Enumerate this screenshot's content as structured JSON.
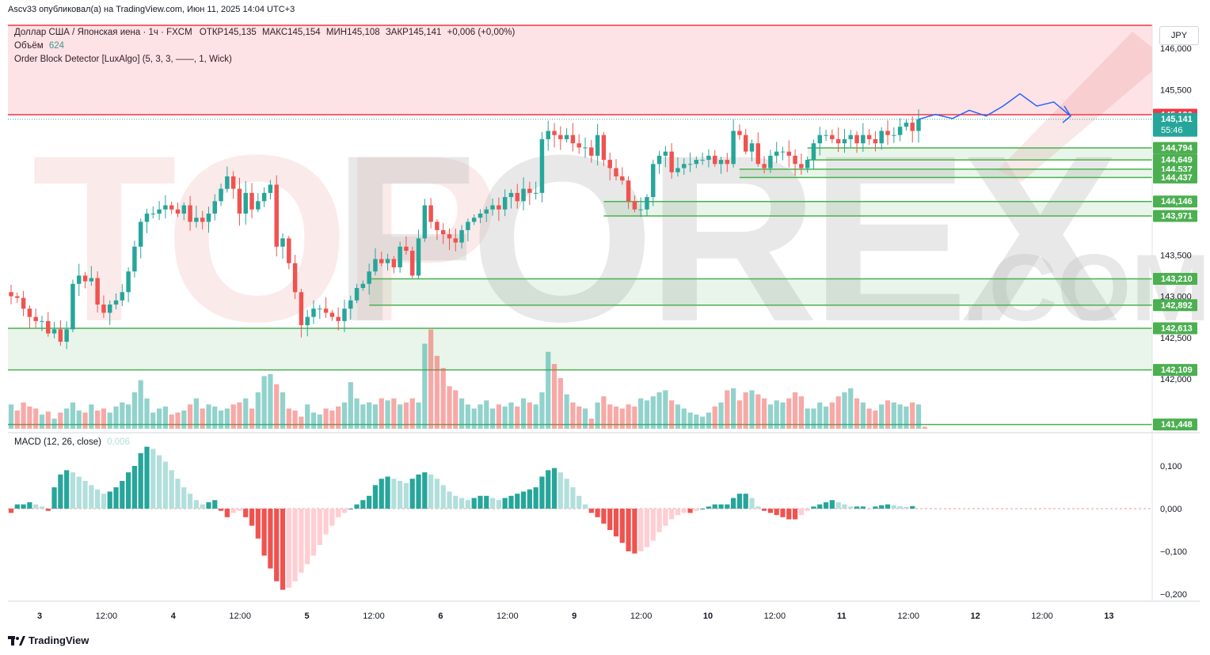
{
  "header": {
    "published": "Ascv33 опубликовал(а) на TradingView.com, Июн 11, 2025 14:04 UTC+3",
    "symbol_line": "Доллар США / Японская иена · 1ч · FXCM",
    "open_label": "ОТКР",
    "open": "145,135",
    "high_label": "МАКС",
    "high": "145,154",
    "low_label": "МИН",
    "low": "145,108",
    "close_label": "ЗАКР",
    "close": "145,141",
    "change": "+0,006 (+0,00%)",
    "volume_label": "Объём",
    "volume": "624",
    "indicator": "Order Block Detector [LuxAlgo] (5, 3, 3, ——, 1, Wick)"
  },
  "currency": "JPY",
  "macd_legend": {
    "label": "MACD (12, 26, close)",
    "value": "0,006"
  },
  "footer": {
    "brand": "TradingView"
  },
  "watermark": {
    "text": "TOPFOREX",
    "suffix": ".COM"
  },
  "colors": {
    "up": "#26a69a",
    "down": "#ef5350",
    "macd_up_strong": "#26a69a",
    "macd_up_weak": "#b2dfdb",
    "macd_down_strong": "#ef5350",
    "macd_down_weak": "#ffcdd2",
    "zone_green": "#4caf50",
    "zone_red": "#f23645",
    "forecast": "#2962ff"
  },
  "chart_data": {
    "type": "candlestick",
    "price_axis": {
      "min": 141.3,
      "max": 146.2,
      "ticks": [
        "146,000",
        "145,500",
        "143,500",
        "143,000",
        "142,500",
        "142,000"
      ],
      "tick_values": [
        146.0,
        145.5,
        143.5,
        143.0,
        142.5,
        142.0
      ]
    },
    "time_axis": {
      "labels": [
        "3",
        "12:00",
        "4",
        "12:00",
        "5",
        "12:00",
        "6",
        "12:00",
        "9",
        "12:00",
        "10",
        "12:00",
        "11",
        "12:00",
        "12",
        "12:00",
        "13"
      ],
      "bold": [
        true,
        false,
        true,
        false,
        true,
        false,
        true,
        false,
        true,
        false,
        true,
        false,
        true,
        false,
        true,
        false,
        true
      ]
    },
    "price_badges": [
      {
        "label": "145,196",
        "value": 145.196,
        "color": "#f23645"
      },
      {
        "label": "145,141",
        "value": 145.141,
        "color": "#26a69a",
        "countdown": "55:46"
      },
      {
        "label": "144,794",
        "value": 144.794,
        "color": "#4caf50"
      },
      {
        "label": "144,649",
        "value": 144.649,
        "color": "#4caf50"
      },
      {
        "label": "144,537",
        "value": 144.537,
        "color": "#4caf50"
      },
      {
        "label": "144,437",
        "value": 144.437,
        "color": "#4caf50"
      },
      {
        "label": "144,146",
        "value": 144.146,
        "color": "#4caf50"
      },
      {
        "label": "143,971",
        "value": 143.971,
        "color": "#4caf50"
      },
      {
        "label": "143,210",
        "value": 143.21,
        "color": "#4caf50"
      },
      {
        "label": "142,892",
        "value": 142.892,
        "color": "#4caf50"
      },
      {
        "label": "142,613",
        "value": 142.613,
        "color": "#4caf50"
      },
      {
        "label": "142,109",
        "value": 142.109,
        "color": "#4caf50"
      },
      {
        "label": "141,448",
        "value": 141.448,
        "color": "#4caf50"
      }
    ],
    "zones": [
      {
        "kind": "bearish",
        "top": 146.2,
        "bottom": 145.196,
        "start_index": 0
      },
      {
        "kind": "bullish",
        "top": 144.794,
        "bottom": 144.649,
        "start_index": 129
      },
      {
        "kind": "bullish",
        "top": 144.537,
        "bottom": 144.437,
        "start_index": 118
      },
      {
        "kind": "bullish",
        "top": 144.146,
        "bottom": 143.971,
        "start_index": 96
      },
      {
        "kind": "bullish",
        "top": 143.21,
        "bottom": 142.892,
        "start_index": 58
      },
      {
        "kind": "bullish",
        "top": 142.613,
        "bottom": 142.109,
        "start_index": 0
      },
      {
        "kind": "line",
        "top": 141.448,
        "bottom": 141.448,
        "start_index": 0
      }
    ],
    "closes": [
      143.0,
      142.98,
      142.85,
      142.75,
      142.7,
      142.7,
      142.55,
      142.6,
      142.45,
      142.6,
      143.15,
      143.25,
      143.18,
      143.22,
      142.9,
      142.8,
      142.9,
      142.95,
      143.05,
      143.3,
      143.6,
      143.9,
      144.0,
      144.0,
      144.05,
      144.1,
      144.05,
      144.0,
      144.1,
      143.9,
      143.95,
      143.9,
      144.0,
      144.15,
      144.3,
      144.45,
      144.3,
      144.0,
      144.25,
      144.05,
      144.15,
      144.25,
      144.35,
      143.6,
      143.7,
      143.4,
      143.05,
      142.65,
      142.75,
      142.85,
      142.85,
      142.8,
      142.75,
      142.7,
      142.85,
      142.95,
      143.1,
      143.15,
      143.3,
      143.45,
      143.4,
      143.45,
      143.35,
      143.6,
      143.55,
      143.25,
      143.7,
      144.1,
      143.9,
      143.8,
      143.75,
      143.7,
      143.65,
      143.8,
      143.9,
      143.95,
      144.0,
      144.05,
      144.1,
      144.05,
      144.2,
      144.25,
      144.15,
      144.3,
      144.25,
      144.25,
      144.9,
      145.0,
      144.95,
      144.9,
      144.95,
      144.85,
      144.8,
      144.8,
      144.7,
      144.95,
      144.65,
      144.55,
      144.45,
      144.4,
      144.15,
      144.05,
      144.05,
      144.2,
      144.6,
      144.7,
      144.75,
      144.5,
      144.55,
      144.6,
      144.6,
      144.65,
      144.65,
      144.7,
      144.6,
      144.65,
      144.6,
      145.0,
      144.95,
      144.75,
      144.85,
      144.6,
      144.55,
      144.7,
      144.75,
      144.75,
      144.7,
      144.6,
      144.55,
      144.65,
      144.85,
      144.95,
      144.95,
      144.9,
      144.85,
      144.9,
      144.95,
      144.85,
      144.95,
      144.9,
      144.85,
      145.0,
      144.95,
      144.95,
      145.05,
      145.1,
      145.0,
      145.141
    ],
    "volumes": [
      0.24,
      0.18,
      0.26,
      0.22,
      0.2,
      0.14,
      0.17,
      0.1,
      0.16,
      0.2,
      0.26,
      0.18,
      0.16,
      0.24,
      0.18,
      0.2,
      0.16,
      0.22,
      0.26,
      0.24,
      0.36,
      0.48,
      0.3,
      0.16,
      0.2,
      0.22,
      0.14,
      0.16,
      0.18,
      0.24,
      0.3,
      0.2,
      0.24,
      0.22,
      0.18,
      0.2,
      0.24,
      0.26,
      0.3,
      0.2,
      0.36,
      0.52,
      0.54,
      0.44,
      0.36,
      0.2,
      0.18,
      0.12,
      0.24,
      0.16,
      0.14,
      0.2,
      0.18,
      0.22,
      0.26,
      0.46,
      0.3,
      0.24,
      0.26,
      0.24,
      0.3,
      0.28,
      0.3,
      0.24,
      0.26,
      0.3,
      0.26,
      0.84,
      0.98,
      0.72,
      0.6,
      0.42,
      0.38,
      0.3,
      0.24,
      0.2,
      0.24,
      0.28,
      0.2,
      0.24,
      0.22,
      0.26,
      0.22,
      0.3,
      0.26,
      0.24,
      0.36,
      0.76,
      0.64,
      0.5,
      0.34,
      0.26,
      0.22,
      0.2,
      0.1,
      0.26,
      0.32,
      0.24,
      0.22,
      0.2,
      0.24,
      0.22,
      0.3,
      0.28,
      0.32,
      0.36,
      0.38,
      0.28,
      0.24,
      0.2,
      0.16,
      0.14,
      0.12,
      0.16,
      0.22,
      0.26,
      0.38,
      0.4,
      0.28,
      0.36,
      0.38,
      0.34,
      0.3,
      0.24,
      0.28,
      0.26,
      0.3,
      0.36,
      0.32,
      0.2,
      0.2,
      0.26,
      0.22,
      0.26,
      0.32,
      0.36,
      0.4,
      0.3,
      0.26,
      0.2,
      0.18,
      0.24,
      0.28,
      0.26,
      0.24,
      0.22,
      0.26,
      0.24,
      0.02
    ],
    "macd_axis": {
      "ticks": [
        "0,100",
        "0,000",
        "−0,100",
        "−0,200"
      ],
      "tick_values": [
        0.1,
        0.0,
        -0.1,
        -0.2
      ]
    },
    "macd_hist": [
      -0.01,
      0.01,
      0.01,
      0.015,
      0.01,
      0.005,
      -0.005,
      0.05,
      0.08,
      0.09,
      0.085,
      0.075,
      0.065,
      0.055,
      0.045,
      0.035,
      0.04,
      0.05,
      0.065,
      0.085,
      0.1,
      0.13,
      0.145,
      0.14,
      0.125,
      0.11,
      0.09,
      0.07,
      0.05,
      0.035,
      0.02,
      0.01,
      0.015,
      0.02,
      -0.005,
      -0.02,
      -0.01,
      -0.005,
      -0.02,
      -0.04,
      -0.07,
      -0.11,
      -0.14,
      -0.17,
      -0.19,
      -0.185,
      -0.17,
      -0.15,
      -0.13,
      -0.11,
      -0.085,
      -0.06,
      -0.04,
      -0.02,
      -0.01,
      0.0,
      0.01,
      0.02,
      0.03,
      0.055,
      0.07,
      0.075,
      0.07,
      0.065,
      0.06,
      0.07,
      0.08,
      0.085,
      0.08,
      0.07,
      0.055,
      0.04,
      0.03,
      0.025,
      0.02,
      0.025,
      0.03,
      0.03,
      0.025,
      0.02,
      0.025,
      0.03,
      0.035,
      0.04,
      0.045,
      0.05,
      0.075,
      0.09,
      0.095,
      0.085,
      0.07,
      0.05,
      0.03,
      0.01,
      -0.01,
      -0.02,
      -0.035,
      -0.05,
      -0.065,
      -0.08,
      -0.1,
      -0.105,
      -0.1,
      -0.09,
      -0.075,
      -0.055,
      -0.04,
      -0.025,
      -0.015,
      -0.01,
      -0.01,
      -0.005,
      0.0,
      0.005,
      0.01,
      0.01,
      0.01,
      0.025,
      0.035,
      0.035,
      0.025,
      0.005,
      -0.005,
      -0.01,
      -0.015,
      -0.02,
      -0.025,
      -0.025,
      -0.015,
      -0.005,
      0.005,
      0.01,
      0.015,
      0.02,
      0.015,
      0.01,
      0.005,
      0.005,
      0.005,
      0.0,
      0.005,
      0.008,
      0.01,
      0.008,
      0.006,
      0.004,
      0.006
    ],
    "forecast": [
      145.141,
      145.2,
      145.15,
      145.25,
      145.18,
      145.3,
      145.45,
      145.3,
      145.35,
      145.18
    ]
  }
}
